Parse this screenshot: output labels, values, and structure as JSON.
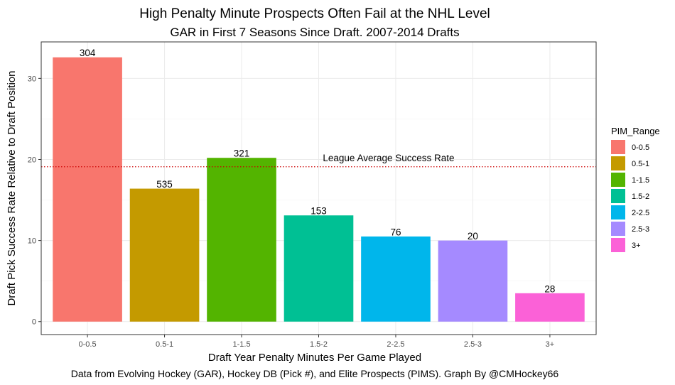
{
  "chart_data": {
    "type": "bar",
    "title": "High Penalty Minute Prospects Often Fail at the NHL Level",
    "subtitle": "GAR in First 7 Seasons Since Draft. 2007-2014 Drafts",
    "xlabel": "Draft Year Penalty Minutes Per Game Played",
    "ylabel": "Draft Pick Success Rate Relative to Draft Position",
    "caption": "Data from Evolving Hockey (GAR), Hockey DB (Pick #), and Elite Prospects (PIMS). Graph By @CMHockey66",
    "categories": [
      "0-0.5",
      "0.5-1",
      "1-1.5",
      "1.5-2",
      "2-2.5",
      "2.5-3",
      "3+"
    ],
    "values": [
      32.6,
      16.4,
      20.2,
      13.1,
      10.5,
      10.0,
      3.5
    ],
    "bar_labels": [
      "304",
      "535",
      "321",
      "153",
      "76",
      "20",
      "28"
    ],
    "colors": [
      "#F8766D",
      "#C49A00",
      "#53B400",
      "#00C094",
      "#00B6EB",
      "#A58AFF",
      "#FB61D7"
    ],
    "yticks": [
      0,
      10,
      20,
      30
    ],
    "ylim": [
      -1.6,
      34.5
    ],
    "grid": true,
    "reference_line": {
      "value": 19.1,
      "label": "League Average Success Rate",
      "color": "#cc0000"
    },
    "legend": {
      "title": "PIM_Range",
      "placement": "right",
      "entries": [
        "0-0.5",
        "0.5-1",
        "1-1.5",
        "1.5-2",
        "2-2.5",
        "2.5-3",
        "3+"
      ]
    }
  }
}
